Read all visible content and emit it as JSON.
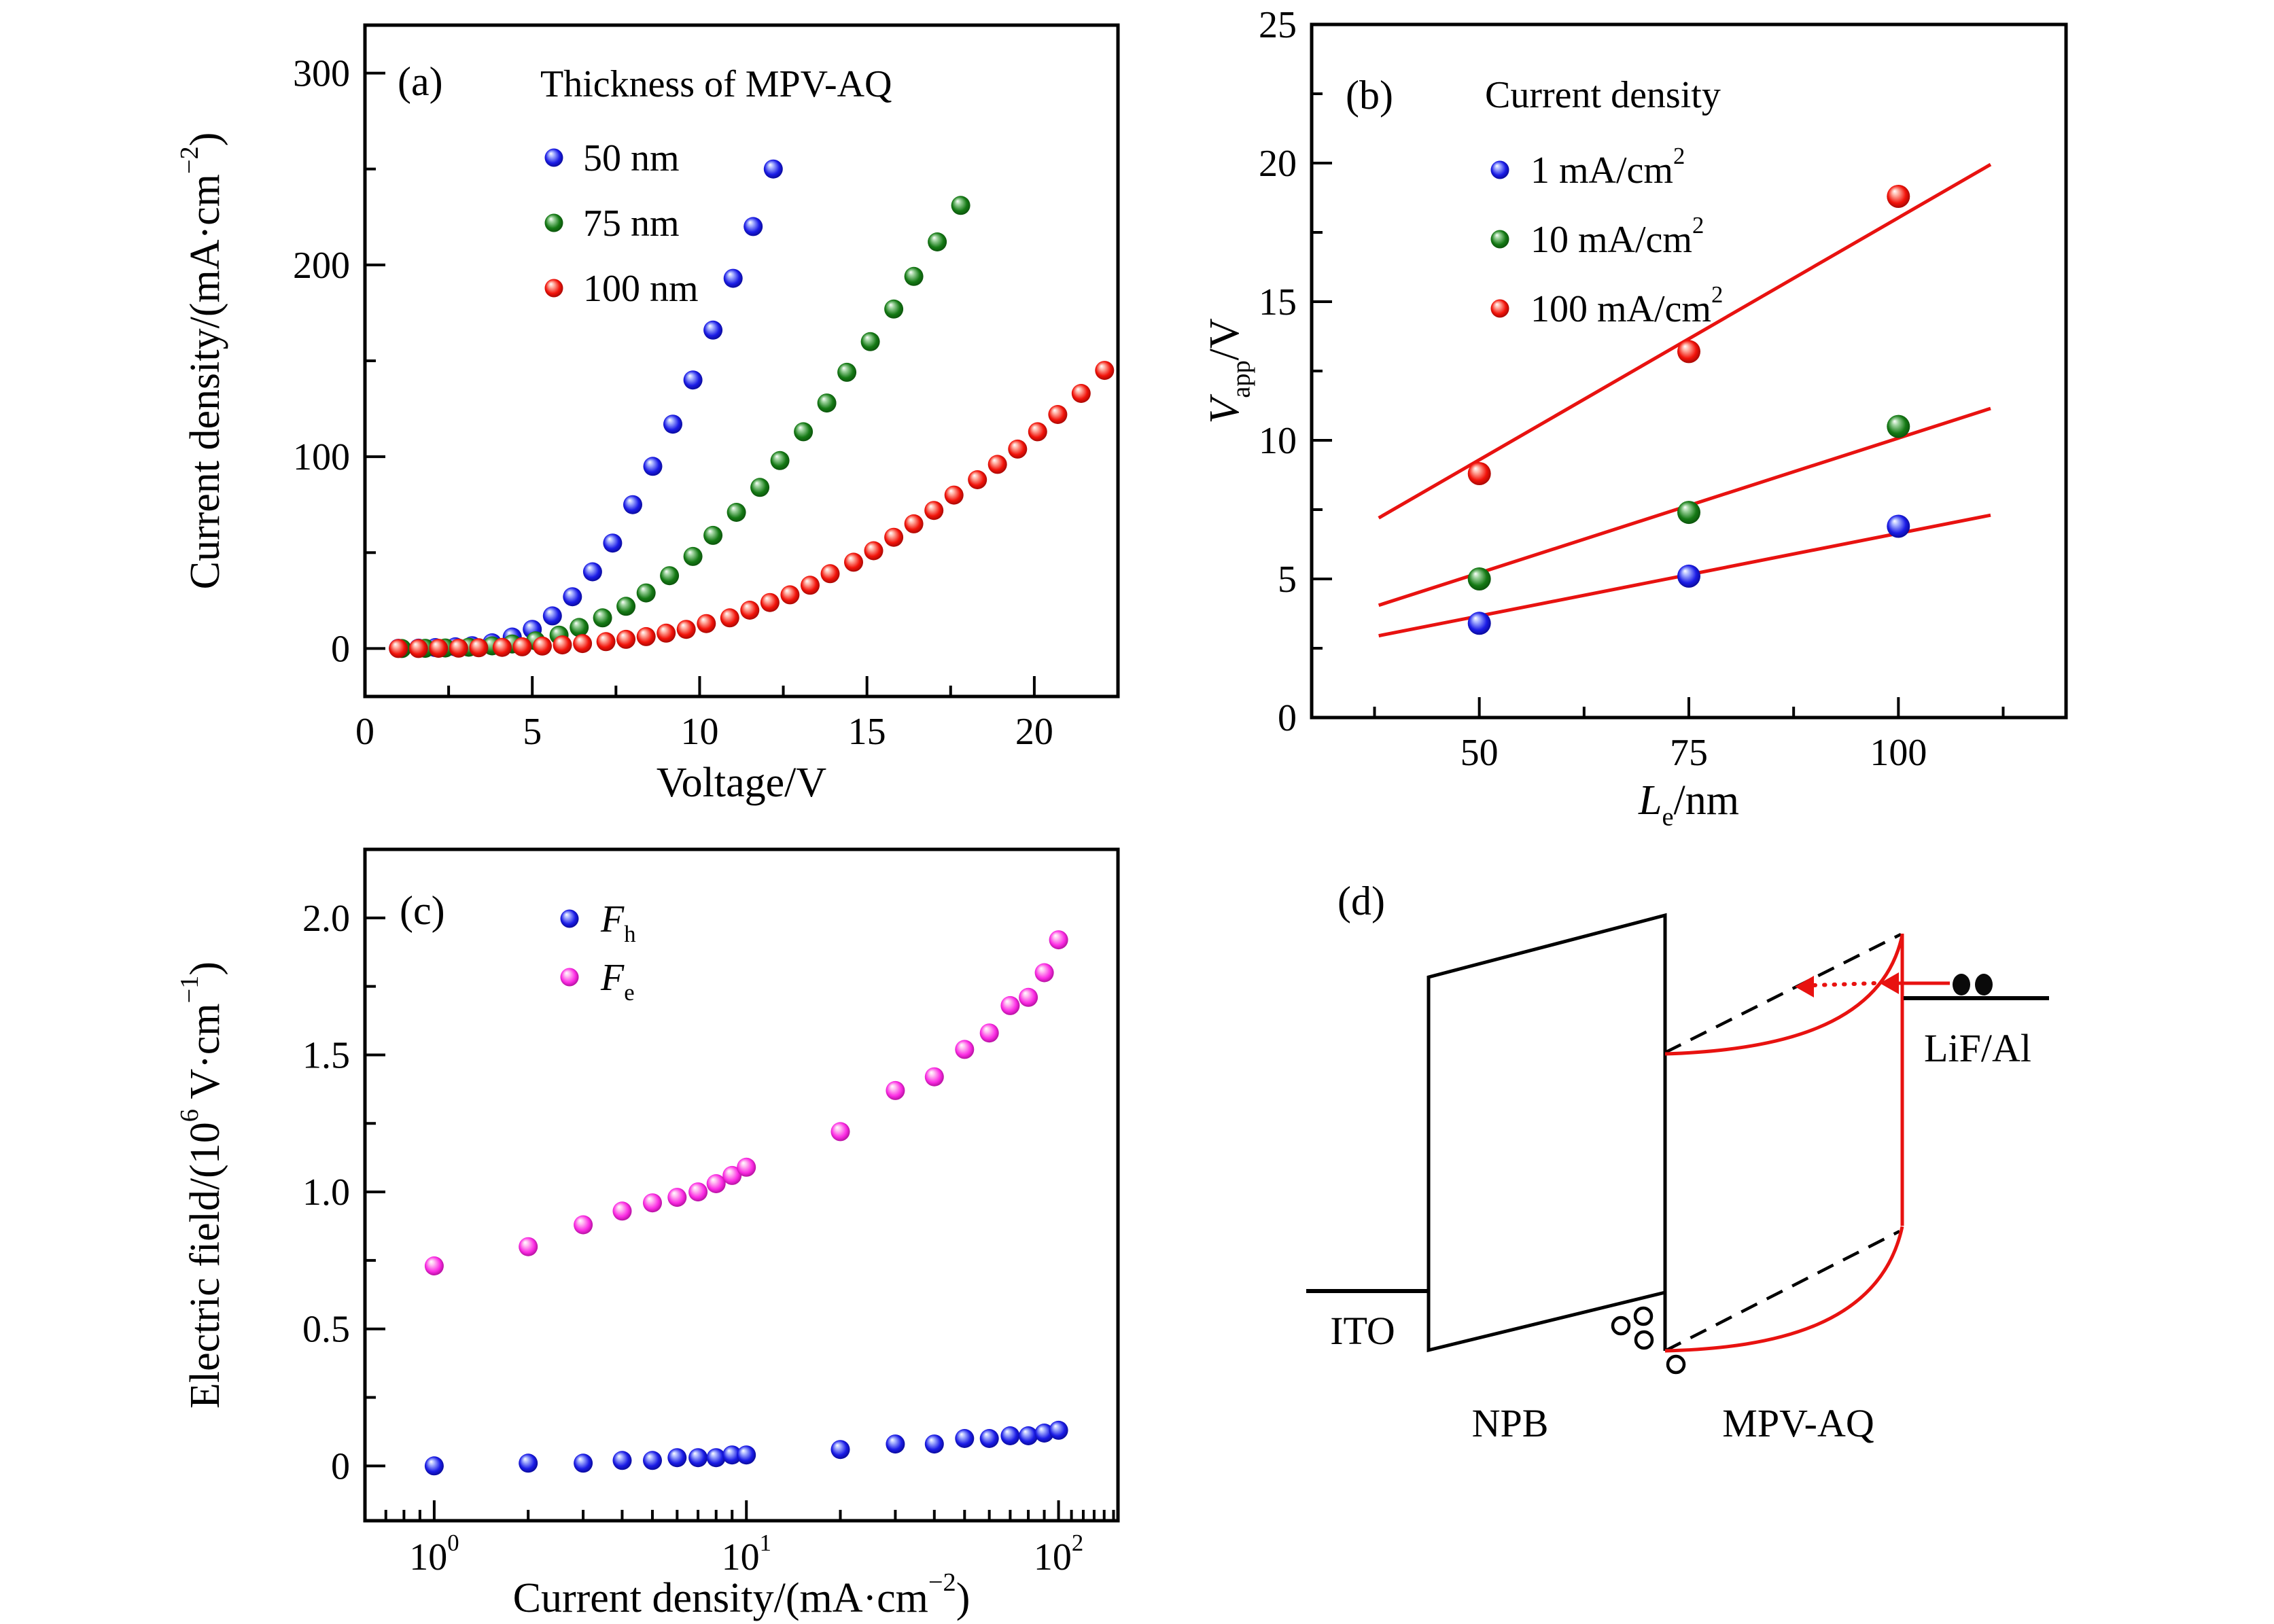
{
  "page": {
    "background": "#ffffff",
    "figure_kind": "four-panel scientific figure"
  },
  "chart_data": [
    {
      "id": "a",
      "type": "scatter",
      "tag": "(a)",
      "xlabel": "Voltage/V",
      "ylabel": "Current density/(mA·cm⁻²)",
      "xlabel_parts": [
        {
          "t": "Voltage/V"
        }
      ],
      "ylabel_parts": [
        {
          "t": "Current density/(mA·cm"
        },
        {
          "t": "−2",
          "sup": true
        },
        {
          "t": ")"
        }
      ],
      "xlim": [
        0,
        22.5
      ],
      "ylim": [
        -25,
        325
      ],
      "xticks": [
        0,
        5,
        10,
        15,
        20
      ],
      "xtick_labels": [
        "0",
        "5",
        "10",
        "15",
        "20"
      ],
      "yticks": [
        0,
        100,
        200,
        300
      ],
      "ytick_labels": [
        "0",
        "100",
        "200",
        "300"
      ],
      "xminor_step": 2.5,
      "yminor_step": 50,
      "grid": false,
      "legend_title": "Thickness of MPV-AQ",
      "legend_position": "top-left-inside",
      "series": [
        {
          "name": "50 nm",
          "name_parts": [
            {
              "t": "50 nm"
            }
          ],
          "color": "#1b1ce6",
          "light": "#a9b4ff",
          "dark": "#000070",
          "points": [
            [
              1.0,
              0.1
            ],
            [
              1.6,
              0.2
            ],
            [
              2.1,
              0.5
            ],
            [
              2.7,
              0.9
            ],
            [
              3.2,
              1.5
            ],
            [
              3.8,
              3
            ],
            [
              4.4,
              6
            ],
            [
              5.0,
              10
            ],
            [
              5.6,
              17
            ],
            [
              6.2,
              27
            ],
            [
              6.8,
              40
            ],
            [
              7.4,
              55
            ],
            [
              8.0,
              75
            ],
            [
              8.6,
              95
            ],
            [
              9.2,
              117
            ],
            [
              9.8,
              140
            ],
            [
              10.4,
              166
            ],
            [
              11.0,
              193
            ],
            [
              11.6,
              220
            ],
            [
              12.2,
              250
            ]
          ]
        },
        {
          "name": "75 nm",
          "name_parts": [
            {
              "t": "75 nm"
            }
          ],
          "color": "#157a15",
          "light": "#9fd49f",
          "dark": "#063e06",
          "points": [
            [
              1.1,
              0
            ],
            [
              1.8,
              0.1
            ],
            [
              2.4,
              0.3
            ],
            [
              3.1,
              0.7
            ],
            [
              3.8,
              1.4
            ],
            [
              4.4,
              2.4
            ],
            [
              5.1,
              4
            ],
            [
              5.8,
              7
            ],
            [
              6.4,
              11
            ],
            [
              7.1,
              16
            ],
            [
              7.8,
              22
            ],
            [
              8.4,
              29
            ],
            [
              9.1,
              38
            ],
            [
              9.8,
              48
            ],
            [
              10.4,
              59
            ],
            [
              11.1,
              71
            ],
            [
              11.8,
              84
            ],
            [
              12.4,
              98
            ],
            [
              13.1,
              113
            ],
            [
              13.8,
              128
            ],
            [
              14.4,
              144
            ],
            [
              15.1,
              160
            ],
            [
              15.8,
              177
            ],
            [
              16.4,
              194
            ],
            [
              17.1,
              212
            ],
            [
              17.8,
              231
            ]
          ]
        },
        {
          "name": "100 nm",
          "name_parts": [
            {
              "t": "100 nm"
            }
          ],
          "color": "#f2130a",
          "light": "#ffb3a6",
          "dark": "#7c0200",
          "points": [
            [
              1.0,
              0
            ],
            [
              1.6,
              0
            ],
            [
              2.2,
              0.1
            ],
            [
              2.8,
              0.2
            ],
            [
              3.4,
              0.4
            ],
            [
              4.1,
              0.6
            ],
            [
              4.7,
              0.9
            ],
            [
              5.3,
              1.3
            ],
            [
              5.9,
              1.9
            ],
            [
              6.5,
              2.6
            ],
            [
              7.2,
              3.6
            ],
            [
              7.8,
              4.8
            ],
            [
              8.4,
              6.2
            ],
            [
              9.0,
              8
            ],
            [
              9.6,
              10
            ],
            [
              10.2,
              13
            ],
            [
              10.9,
              16
            ],
            [
              11.5,
              20
            ],
            [
              12.1,
              24
            ],
            [
              12.7,
              28
            ],
            [
              13.3,
              33
            ],
            [
              13.9,
              39
            ],
            [
              14.6,
              45
            ],
            [
              15.2,
              51
            ],
            [
              15.8,
              58
            ],
            [
              16.4,
              65
            ],
            [
              17.0,
              72
            ],
            [
              17.6,
              80
            ],
            [
              18.3,
              88
            ],
            [
              18.9,
              96
            ],
            [
              19.5,
              104
            ],
            [
              20.1,
              113
            ],
            [
              20.7,
              122
            ],
            [
              21.4,
              133
            ],
            [
              22.1,
              145
            ]
          ]
        }
      ]
    },
    {
      "id": "b",
      "type": "scatter",
      "tag": "(b)",
      "xlabel": "Le/nm",
      "ylabel": "Vapp/V",
      "xlabel_parts": [
        {
          "t": "L",
          "i": true
        },
        {
          "t": "e",
          "sub": true
        },
        {
          "t": "/nm"
        }
      ],
      "ylabel_parts": [
        {
          "t": "V",
          "i": true
        },
        {
          "t": "app",
          "sub": true
        },
        {
          "t": "/V"
        }
      ],
      "xlim": [
        30,
        120
      ],
      "ylim": [
        0,
        25
      ],
      "xticks": [
        50,
        75,
        100
      ],
      "xtick_labels": [
        "50",
        "75",
        "100"
      ],
      "yticks": [
        0,
        5,
        10,
        15,
        20,
        25
      ],
      "ytick_labels": [
        "0",
        "5",
        "10",
        "15",
        "20",
        "25"
      ],
      "xminor_step": 12.5,
      "yminor_step": 2.5,
      "grid": false,
      "legend_title": "Current density",
      "legend_position": "top-left-inside",
      "series": [
        {
          "name": "1 mA/cm²",
          "name_parts": [
            {
              "t": "1 mA/cm"
            },
            {
              "t": "2",
              "sup": true
            }
          ],
          "color": "#1b1ce6",
          "light": "#a9b4ff",
          "dark": "#000070",
          "points": [
            [
              50,
              3.4
            ],
            [
              75,
              5.1
            ],
            [
              100,
              6.9
            ]
          ]
        },
        {
          "name": "10 mA/cm²",
          "name_parts": [
            {
              "t": "10 mA/cm"
            },
            {
              "t": "2",
              "sup": true
            }
          ],
          "color": "#157a15",
          "light": "#9fd49f",
          "dark": "#063e06",
          "points": [
            [
              50,
              5.0
            ],
            [
              75,
              7.4
            ],
            [
              100,
              10.5
            ]
          ]
        },
        {
          "name": "100 mA/cm²",
          "name_parts": [
            {
              "t": "100 mA/cm"
            },
            {
              "t": "2",
              "sup": true
            }
          ],
          "color": "#f2130a",
          "light": "#ffb3a6",
          "dark": "#7c0200",
          "points": [
            [
              50,
              8.8
            ],
            [
              75,
              13.2
            ],
            [
              100,
              18.8
            ]
          ]
        }
      ],
      "fit_lines": {
        "color": "#e81210",
        "segments": [
          [
            38,
            2.95,
            111,
            7.3
          ],
          [
            38,
            4.05,
            111,
            11.15
          ],
          [
            38,
            7.2,
            111,
            19.95
          ]
        ]
      }
    },
    {
      "id": "c",
      "type": "scatter",
      "tag": "(c)",
      "xscale": "log",
      "xlabel": "Current density/(mA·cm⁻²)",
      "ylabel": "Electric field/(10⁶ V·cm⁻¹)",
      "xlabel_parts": [
        {
          "t": "Current density/(mA·cm"
        },
        {
          "t": "−2",
          "sup": true
        },
        {
          "t": ")"
        }
      ],
      "ylabel_parts": [
        {
          "t": "Electric field/(10"
        },
        {
          "t": "6",
          "sup": true
        },
        {
          "t": " V·cm"
        },
        {
          "t": "−1",
          "sup": true
        },
        {
          "t": ")"
        }
      ],
      "xlim": [
        0.6,
        155
      ],
      "ylim": [
        -0.2,
        2.25
      ],
      "xticks": [
        1,
        10,
        100
      ],
      "xtick_label_parts": [
        [
          {
            "t": "10"
          },
          {
            "t": "0",
            "sup": true
          }
        ],
        [
          {
            "t": "10"
          },
          {
            "t": "1",
            "sup": true
          }
        ],
        [
          {
            "t": "10"
          },
          {
            "t": "2",
            "sup": true
          }
        ]
      ],
      "xminor_values": [
        0.7,
        0.8,
        0.9,
        2,
        3,
        4,
        5,
        6,
        7,
        8,
        9,
        20,
        30,
        40,
        50,
        60,
        70,
        80,
        90,
        110,
        120,
        130,
        140,
        150
      ],
      "yticks": [
        0,
        0.5,
        1.0,
        1.5,
        2.0
      ],
      "ytick_labels": [
        "0",
        "0.5",
        "1.0",
        "1.5",
        "2.0"
      ],
      "yminor_step": 0.25,
      "grid": false,
      "legend_position": "top-center-inside",
      "x_shared": [
        1,
        2,
        3,
        4,
        5,
        6,
        7,
        8,
        9,
        10,
        20,
        30,
        40,
        50,
        60,
        70,
        80,
        90,
        100
      ],
      "series": [
        {
          "name": "Fh",
          "name_parts": [
            {
              "t": "F",
              "i": true
            },
            {
              "t": "h",
              "sub": true
            }
          ],
          "color": "#1b1ce6",
          "light": "#a9b4ff",
          "dark": "#000070",
          "y": [
            0.0,
            0.01,
            0.01,
            0.02,
            0.02,
            0.03,
            0.03,
            0.03,
            0.04,
            0.04,
            0.06,
            0.08,
            0.08,
            0.1,
            0.1,
            0.11,
            0.11,
            0.12,
            0.13
          ]
        },
        {
          "name": "Fe",
          "name_parts": [
            {
              "t": "F",
              "i": true
            },
            {
              "t": "e",
              "sub": true
            }
          ],
          "color": "#fc2ce4",
          "light": "#ffc0f2",
          "dark": "#8c0078",
          "y": [
            0.73,
            0.8,
            0.88,
            0.93,
            0.96,
            0.98,
            1.0,
            1.03,
            1.06,
            1.09,
            1.22,
            1.37,
            1.42,
            1.52,
            1.58,
            1.68,
            1.71,
            1.8,
            1.92
          ]
        }
      ]
    },
    {
      "id": "d",
      "type": "diagram",
      "tag": "(d)",
      "labels": {
        "ito": "ITO",
        "npb": "NPB",
        "mpv_aq": "MPV-AQ",
        "lif_al": "LiF/Al"
      },
      "elements": {
        "electrons": "two filled circles on LiF/Al level",
        "holes": "four open circles at NPB/MPV-AQ interface",
        "red_solid_arrow": "electron injection from LiF/Al into MPV-AQ",
        "red_dotted_arrow": "electron drift toward NPB interface",
        "dashed_lines": "flat LUMO/HOMO levels of MPV-AQ",
        "red_curves": "band-bent LUMO/HOMO of MPV-AQ",
        "accent_color": "#e81210"
      }
    }
  ]
}
